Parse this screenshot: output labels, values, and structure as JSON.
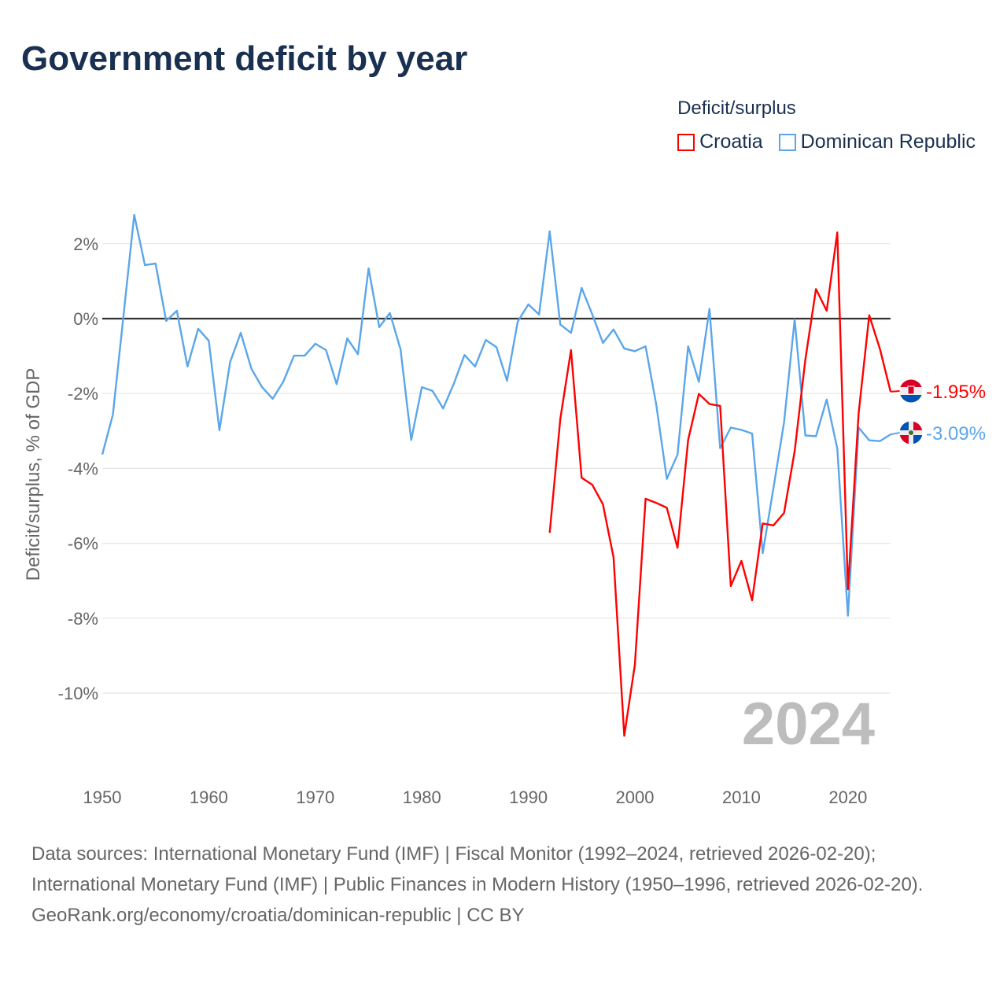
{
  "title": "Government deficit by year",
  "legend": {
    "title": "Deficit/surplus",
    "items": [
      {
        "label": "Croatia",
        "color": "#ff0000"
      },
      {
        "label": "Dominican Republic",
        "color": "#5ba6ea"
      }
    ]
  },
  "chart_data": {
    "type": "line",
    "title": "Government deficit by year",
    "xlabel": "",
    "ylabel": "Deficit/surplus, % of GDP",
    "xlim": [
      1950,
      2024
    ],
    "ylim": [
      -11.8,
      3.2
    ],
    "x_ticks": [
      1950,
      1960,
      1970,
      1980,
      1990,
      2000,
      2010,
      2020
    ],
    "x_tick_labels": [
      "1950",
      "1960",
      "1970",
      "1980",
      "1990",
      "2000",
      "2010",
      "2020"
    ],
    "y_ticks": [
      2,
      0,
      -2,
      -4,
      -6,
      -8,
      -10
    ],
    "y_tick_labels": [
      "2%",
      "0%",
      "-2%",
      "-4%",
      "-6%",
      "-8%",
      "-10%"
    ],
    "grid": true,
    "legend_position": "top-right",
    "year_watermark": "2024",
    "series": [
      {
        "name": "Croatia",
        "color": "#ff0000",
        "end_label": "-1.95%",
        "flag": "croatia-flag",
        "x": [
          1992,
          1993,
          1994,
          1995,
          1996,
          1997,
          1998,
          1999,
          2000,
          2001,
          2002,
          2003,
          2004,
          2005,
          2006,
          2007,
          2008,
          2009,
          2010,
          2011,
          2012,
          2013,
          2014,
          2015,
          2016,
          2017,
          2018,
          2019,
          2020,
          2021,
          2022,
          2023,
          2024
        ],
        "values": [
          -5.72,
          -2.68,
          -0.84,
          -4.25,
          -4.44,
          -4.96,
          -6.38,
          -11.14,
          -9.24,
          -4.81,
          -4.92,
          -5.05,
          -6.12,
          -3.24,
          -2.01,
          -2.28,
          -2.33,
          -7.14,
          -6.47,
          -7.52,
          -5.47,
          -5.52,
          -5.19,
          -3.54,
          -1.09,
          0.79,
          0.21,
          2.3,
          -7.23,
          -2.53,
          0.09,
          -0.81,
          -1.95
        ]
      },
      {
        "name": "Dominican Republic",
        "color": "#5ba6ea",
        "end_label": "-3.09%",
        "flag": "dominican-republic-flag",
        "x": [
          1950,
          1951,
          1952,
          1953,
          1954,
          1955,
          1956,
          1957,
          1958,
          1959,
          1960,
          1961,
          1962,
          1963,
          1964,
          1965,
          1966,
          1967,
          1968,
          1969,
          1970,
          1971,
          1972,
          1973,
          1974,
          1975,
          1976,
          1977,
          1978,
          1979,
          1980,
          1981,
          1982,
          1983,
          1984,
          1985,
          1986,
          1987,
          1988,
          1989,
          1990,
          1991,
          1992,
          1993,
          1994,
          1995,
          1996,
          1997,
          1998,
          1999,
          2000,
          2001,
          2002,
          2003,
          2004,
          2005,
          2006,
          2007,
          2008,
          2009,
          2010,
          2011,
          2012,
          2013,
          2014,
          2015,
          2016,
          2017,
          2018,
          2019,
          2020,
          2021,
          2022,
          2023,
          2024
        ],
        "values": [
          -3.63,
          -2.56,
          0.1,
          2.77,
          1.43,
          1.47,
          -0.06,
          0.21,
          -1.28,
          -0.27,
          -0.59,
          -2.98,
          -1.16,
          -0.38,
          -1.34,
          -1.83,
          -2.14,
          -1.68,
          -0.99,
          -0.99,
          -0.67,
          -0.84,
          -1.75,
          -0.53,
          -0.95,
          1.34,
          -0.23,
          0.15,
          -0.82,
          -3.24,
          -1.83,
          -1.93,
          -2.4,
          -1.74,
          -0.97,
          -1.28,
          -0.57,
          -0.76,
          -1.66,
          -0.08,
          0.38,
          0.11,
          2.33,
          -0.16,
          -0.38,
          0.82,
          0.11,
          -0.65,
          -0.29,
          -0.8,
          -0.87,
          -0.74,
          -2.29,
          -4.28,
          -3.63,
          -0.74,
          -1.69,
          0.26,
          -3.46,
          -2.91,
          -2.97,
          -3.07,
          -6.26,
          -4.53,
          -2.77,
          -0.02,
          -3.12,
          -3.14,
          -2.16,
          -3.47,
          -7.93,
          -2.91,
          -3.25,
          -3.27,
          -3.09
        ]
      }
    ]
  },
  "footer": {
    "sources": "Data sources: International Monetary Fund (IMF) | Fiscal Monitor (1992–2024, retrieved 2026-02-20); International Monetary Fund (IMF) | Public Finances in Modern History (1950–1996, retrieved 2026-02-20).",
    "link": "GeoRank.org/economy/croatia/dominican-republic",
    "license": "CC BY"
  }
}
